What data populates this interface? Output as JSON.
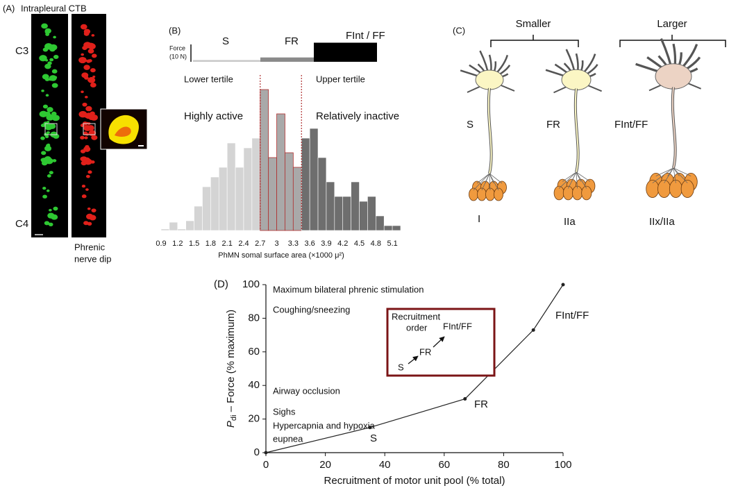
{
  "panel_a": {
    "label": "(A)",
    "title": "Intrapleural CTB",
    "top_level": "C3",
    "bottom_level": "C4",
    "caption_line1": "Phrenic",
    "caption_line2": "nerve dip"
  },
  "panel_c": {
    "label": "(C)",
    "group_small": "Smaller",
    "group_large": "Larger",
    "neurons": [
      {
        "name": "S",
        "fiber": "I"
      },
      {
        "name": "FR",
        "fiber": "IIa"
      },
      {
        "name": "FInt/FF",
        "fiber": "IIx/IIa"
      }
    ]
  },
  "chart_data": [
    {
      "type": "histogram",
      "label": "(B)",
      "force_label_line1": "Force",
      "force_label_line2": "(10 N)",
      "force_scale": 10,
      "force_units": [
        {
          "name": "S",
          "force": 1,
          "color": "#c8c8c8"
        },
        {
          "name": "FR",
          "force": 2.5,
          "color": "#8a8a8a"
        },
        {
          "name": "FInt / FF",
          "force": 11,
          "color": "#000000"
        }
      ],
      "lower_label": "Lower tertile",
      "upper_label": "Upper tertile",
      "lower_activity": "Highly active",
      "upper_activity": "Relatively inactive",
      "bins": [
        0.9,
        1.05,
        1.2,
        1.35,
        1.5,
        1.65,
        1.8,
        1.95,
        2.1,
        2.25,
        2.4,
        2.55,
        2.7,
        2.85,
        3,
        3.15,
        3.3,
        3.45,
        3.6,
        3.75,
        3.9,
        4.05,
        4.2,
        4.35,
        4.5,
        4.65,
        4.8,
        4.95,
        5.1,
        5.25
      ],
      "values": [
        0.3,
        1.7,
        0.3,
        2,
        5,
        9,
        11,
        13,
        18,
        13,
        17,
        19,
        29,
        15,
        24,
        16,
        13,
        19,
        21,
        15,
        10,
        7,
        7,
        10,
        6,
        7,
        3,
        1,
        1
      ],
      "tertile_bounds": [
        2.7,
        3.45
      ],
      "tertile_colors": [
        "#d4d4d4",
        "#a9a9a9",
        "#6e6e6e"
      ],
      "boundary_color": "#b03030",
      "xlim": [
        0.9,
        5.25
      ],
      "xticks": [
        0.9,
        1.2,
        1.5,
        1.8,
        2.1,
        2.4,
        2.7,
        3,
        3.3,
        3.6,
        3.9,
        4.2,
        4.5,
        4.8,
        5.1
      ],
      "ylim": [
        0,
        30
      ],
      "x_label": "PhMN somal surface area (×1000 μ²)"
    },
    {
      "type": "line",
      "label": "(D)",
      "x": [
        0,
        35,
        67,
        90,
        100
      ],
      "values": [
        0,
        15,
        32,
        73,
        100
      ],
      "color": "#222222",
      "unit_labels": [
        "S",
        "FR",
        "FInt/FF"
      ],
      "behaviors": [
        "Maximum bilateral phrenic stimulation",
        "Coughing/sneezing",
        "Airway occlusion",
        "Sighs",
        "Hypercapnia and hypoxia",
        "eupnea"
      ],
      "inset": {
        "title_line1": "Recruitment",
        "title_line2": "order",
        "steps": [
          "S",
          "FR",
          "FInt/FF"
        ],
        "color": "#7b1416"
      },
      "xlim": [
        0,
        100
      ],
      "xticks": [
        0,
        20,
        40,
        60,
        80,
        100
      ],
      "ylim": [
        0,
        100
      ],
      "yticks": [
        0,
        20,
        40,
        60,
        80,
        100
      ],
      "y_label_symbol": "P",
      "y_label_subscript": "di",
      "y_label": " – Force (% maximum)",
      "x_label": "Recruitment of motor unit pool (% total)"
    }
  ]
}
